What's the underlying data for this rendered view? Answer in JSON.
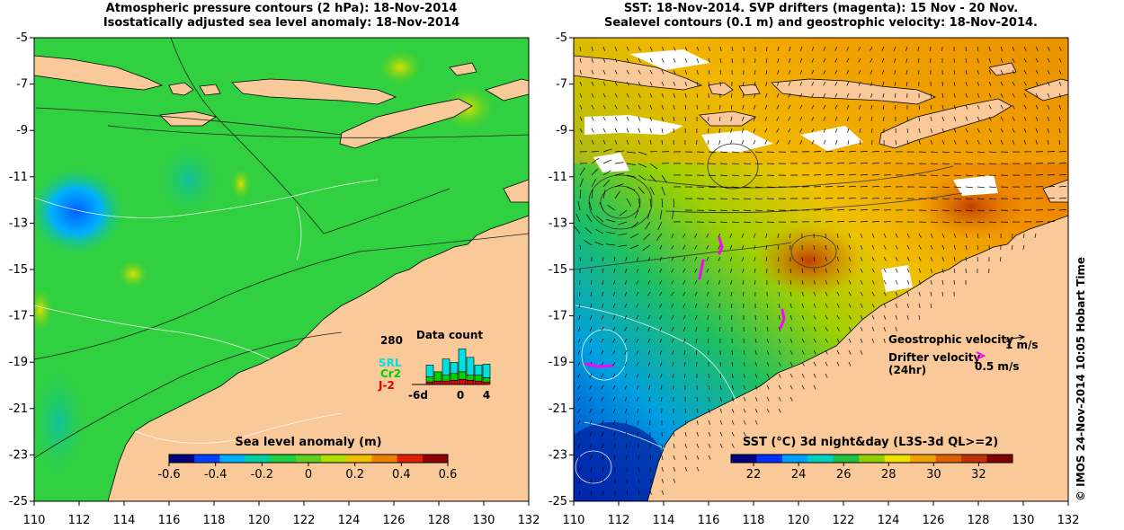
{
  "left_panel": {
    "title_line1": "Atmospheric pressure contours (2 hPa): 18-Nov-2014",
    "title_line2": "Isostatically adjusted sea level anomaly: 18-Nov-2014",
    "x_ticks": [
      "110",
      "112",
      "114",
      "116",
      "118",
      "120",
      "122",
      "124",
      "126",
      "128",
      "130",
      "132"
    ],
    "y_ticks": [
      "-5",
      "-7",
      "-9",
      "-11",
      "-13",
      "-15",
      "-17",
      "-19",
      "-21",
      "-23",
      "-25"
    ],
    "colorbar": {
      "label": "Sea level anomaly (m)",
      "ticks": [
        "-0.6",
        "-0.4",
        "-0.2",
        "0",
        "0.2",
        "0.4",
        "0.6"
      ],
      "min": -0.6,
      "max": 0.6
    },
    "data_count": {
      "title": "Data count",
      "max_label": "280",
      "series_labels": [
        "SRL",
        "Cr2",
        "J-2"
      ],
      "series_colors": [
        "#00e0e0",
        "#00d000",
        "#e00000"
      ],
      "x_labels": [
        "-6d",
        "0",
        "4"
      ],
      "bars": [
        {
          "srl": 140,
          "cr2": 60,
          "j2": 30
        },
        {
          "srl": 0,
          "cr2": 110,
          "j2": 40
        },
        {
          "srl": 190,
          "cr2": 70,
          "j2": 40
        },
        {
          "srl": 130,
          "cr2": 80,
          "j2": 50
        },
        {
          "srl": 270,
          "cr2": 90,
          "j2": 60
        },
        {
          "srl": 210,
          "cr2": 60,
          "j2": 50
        },
        {
          "srl": 120,
          "cr2": 70,
          "j2": 40
        },
        {
          "srl": 160,
          "cr2": 50,
          "j2": 30
        }
      ]
    }
  },
  "right_panel": {
    "title_line1": "SST: 18-Nov-2014. SVP drifters (magenta): 15 Nov - 20 Nov.",
    "title_line2": "Sealevel contours (0.1 m) and geostrophic velocity: 18-Nov-2014.",
    "x_ticks": [
      "110",
      "112",
      "114",
      "116",
      "118",
      "120",
      "122",
      "124",
      "126",
      "128",
      "130",
      "132"
    ],
    "y_ticks": [
      "-5",
      "-7",
      "-9",
      "-11",
      "-13",
      "-15",
      "-17",
      "-19",
      "-21",
      "-23",
      "-25"
    ],
    "colorbar": {
      "label": "SST (°C) 3d night&day (L3S-3d QL>=2)",
      "ticks": [
        "22",
        "24",
        "26",
        "28",
        "30",
        "32"
      ],
      "min": 21,
      "max": 33.5
    },
    "legend": {
      "geo_label": "Geostrophic velocity",
      "geo_scale": "1 m/s",
      "drifter_label_line1": "Drifter velocity",
      "drifter_label_line2": "(24hr)",
      "drifter_scale": "0.5 m/s",
      "drifter_color": "#ff00ff"
    },
    "credit": "© IMOS 24-Nov-2014 10:05 Hobart Time"
  },
  "colors": {
    "land": "#f9c99a",
    "sla_scale": [
      "#00007f",
      "#0040ff",
      "#00b0ff",
      "#00d0a0",
      "#20d040",
      "#60d020",
      "#b0e000",
      "#f0c000",
      "#f08000",
      "#e02000",
      "#900000"
    ],
    "sst_scale": [
      "#00007f",
      "#0030ff",
      "#00a0ff",
      "#00d0c0",
      "#20c040",
      "#90d000",
      "#f0e000",
      "#f0a000",
      "#e06000",
      "#c03000",
      "#800000"
    ]
  }
}
